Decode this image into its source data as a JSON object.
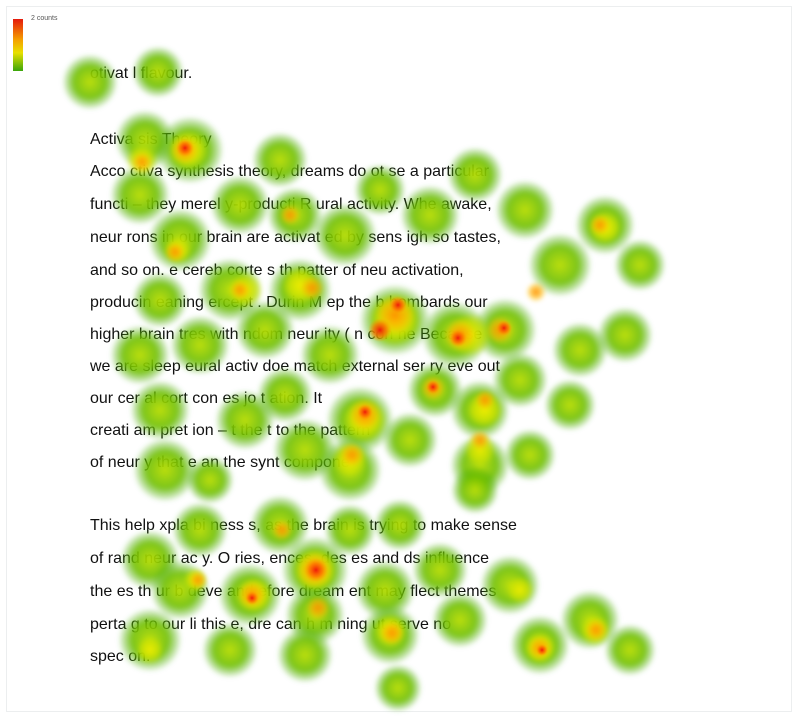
{
  "legend": {
    "label": "2 counts",
    "colors": [
      "#e41a0d",
      "#f5a000",
      "#e8e000",
      "#3aa50b"
    ]
  },
  "document": {
    "top_line": "otivat       l flavour.",
    "paragraph1": [
      "Activa              sis Theory",
      "Acco                  ctiva        synthesis theory, dreams do   ot se    a     particular",
      "functi   – they     merel    y-producti    R        ural activity. Whe           awake,",
      "neur       rons in our brain are activat    ed by sens            igh       so        tastes,",
      "and so on.     e cereb     corte         s th    patter     of neu    activation,",
      "producin    eaning      ercept     . Durin        M        ep the b       bombards our",
      "higher brain      tres with     ndom neur        ity (                  n con      ne     Because",
      "we are   sleep        eural activ         doe       match     external ser     ry eve    out",
      "our cer       al cort   con         es           jo         t         ation. It",
      "creati       am      pret      ion –       t          the     t to the           pattern",
      "of neur          y that e               an          the synt           compone"
    ],
    "paragraph2": [
      "This help      xpla           bi      ness                  s, as the brain is trying to make sense",
      "of rand         neur     ac      y. O         ries,         ences, des      es and      ds    influence",
      "the      es th    ur b      deve        and      efore dream         ent may    flect themes",
      "perta      g to our li        this        e, dre       can h    m      ning    ut     serve no",
      "spec            on."
    ]
  }
}
